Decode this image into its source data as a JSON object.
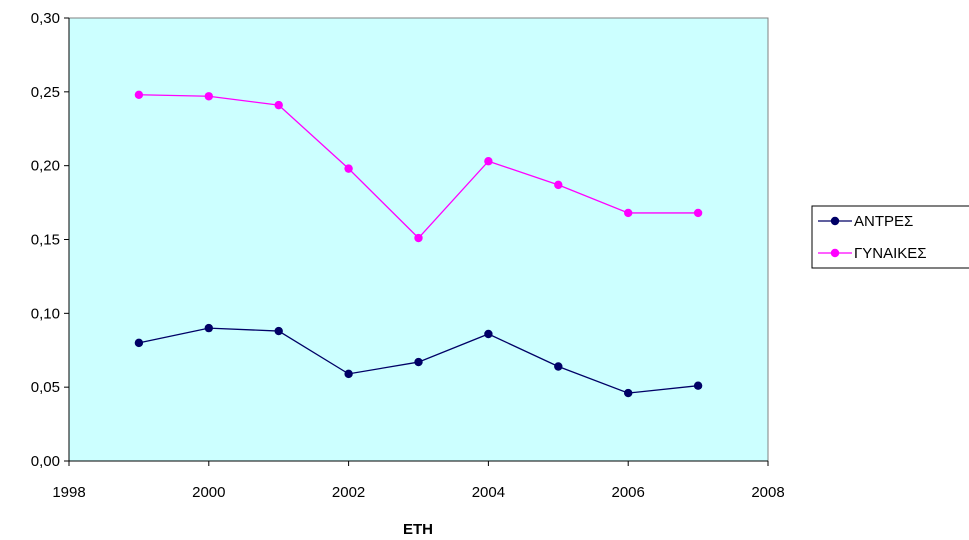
{
  "chart_data": {
    "type": "line",
    "title": "",
    "xlabel": "ΕΤΗ",
    "ylabel": "",
    "xlim": [
      1998,
      2008
    ],
    "ylim": [
      0,
      0.3
    ],
    "x_ticks": [
      "1998",
      "2000",
      "2002",
      "2004",
      "2006",
      "2008"
    ],
    "y_ticks": [
      "0,00",
      "0,05",
      "0,10",
      "0,15",
      "0,20",
      "0,25",
      "0,30"
    ],
    "x": [
      1999,
      2000,
      2001,
      2002,
      2003,
      2004,
      2005,
      2006,
      2007
    ],
    "series": [
      {
        "name": "ΑΝΤΡΕΣ",
        "color": "#000066",
        "values": [
          0.08,
          0.09,
          0.088,
          0.059,
          0.067,
          0.086,
          0.064,
          0.046,
          0.051
        ]
      },
      {
        "name": "ΓΥΝΑΙΚΕΣ",
        "color": "#FF00FF",
        "values": [
          0.248,
          0.247,
          0.241,
          0.198,
          0.151,
          0.203,
          0.187,
          0.168,
          0.168
        ]
      }
    ],
    "plot_background": "#CCFFFF",
    "grid": false,
    "legend_position": "right"
  }
}
